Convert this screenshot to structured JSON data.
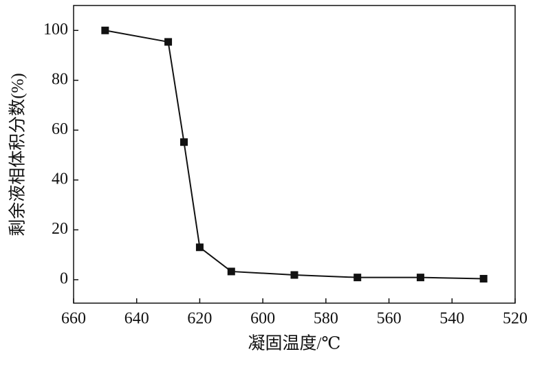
{
  "chart_data": {
    "type": "line",
    "x_label": "凝固温度/℃",
    "y_label": "剩余液相体积分数(%)",
    "x": [
      650,
      630,
      625,
      620,
      610,
      590,
      570,
      550,
      530
    ],
    "series": [
      {
        "color": "#111111",
        "values": [
          100,
          95.4,
          55.2,
          13,
          3.3,
          1.9,
          0.9,
          0.9,
          0.4
        ]
      }
    ],
    "xlim": [
      660,
      520
    ],
    "xticks": [
      660,
      640,
      620,
      600,
      580,
      560,
      540,
      520
    ],
    "ylim": [
      -9.4,
      110
    ],
    "yticks": [
      0,
      20,
      40,
      60,
      80,
      100
    ]
  }
}
